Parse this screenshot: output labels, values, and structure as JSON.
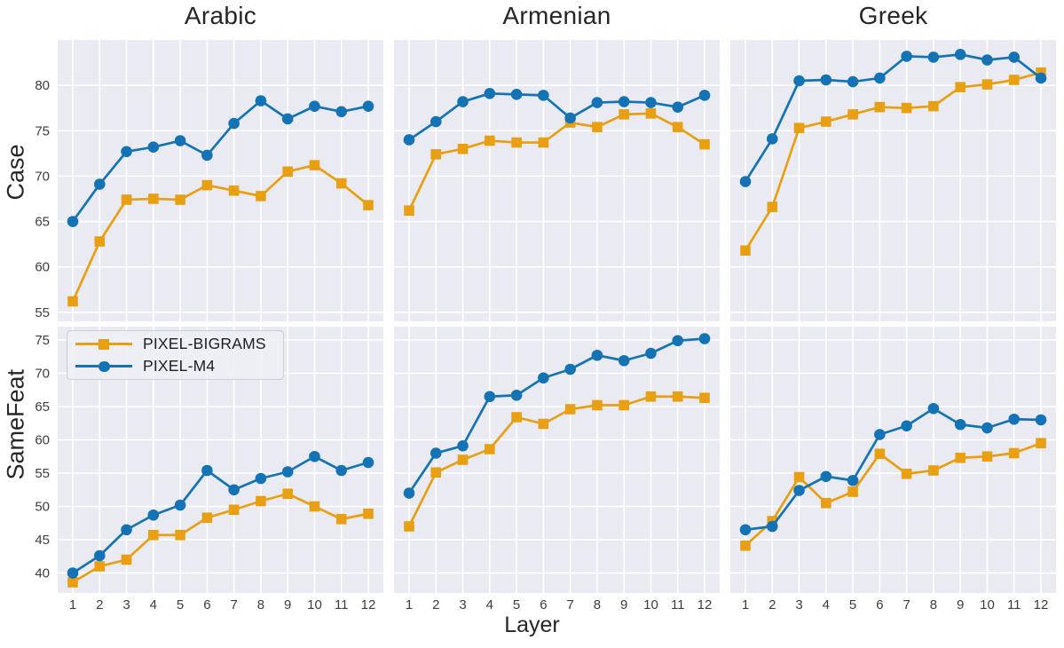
{
  "figure": {
    "col_titles": [
      "Arabic",
      "Armenian",
      "Greek"
    ],
    "row_labels": [
      "Case",
      "SameFeat"
    ],
    "xlabel": "Layer",
    "legend": [
      {
        "label": "PIXEL-BIGRAMS",
        "color": "#E8A012",
        "marker": "square"
      },
      {
        "label": "PIXEL-M4",
        "color": "#1473B4",
        "marker": "circle"
      }
    ],
    "colors": {
      "panel_background": "#EAEAF2",
      "gridline": "#FFFFFF",
      "tick_text": "#3d3d3d",
      "title_text": "#262626"
    }
  },
  "chart_data": [
    {
      "type": "line",
      "row": "Case",
      "col": "Arabic",
      "grid": true,
      "x": [
        1,
        2,
        3,
        4,
        5,
        6,
        7,
        8,
        9,
        10,
        11,
        12
      ],
      "ylim": [
        54,
        85
      ],
      "yticks": [
        55,
        60,
        65,
        70,
        75,
        80
      ],
      "series": [
        {
          "name": "PIXEL-BIGRAMS",
          "values": [
            56.2,
            62.8,
            67.4,
            67.5,
            67.4,
            69.0,
            68.4,
            67.8,
            70.5,
            71.2,
            69.2,
            66.8
          ]
        },
        {
          "name": "PIXEL-M4",
          "values": [
            65.0,
            69.1,
            72.7,
            73.2,
            73.9,
            72.3,
            75.8,
            78.3,
            76.3,
            77.7,
            77.1,
            77.7
          ]
        }
      ]
    },
    {
      "type": "line",
      "row": "Case",
      "col": "Armenian",
      "grid": true,
      "x": [
        1,
        2,
        3,
        4,
        5,
        6,
        7,
        8,
        9,
        10,
        11,
        12
      ],
      "ylim": [
        54,
        85
      ],
      "yticks": [
        55,
        60,
        65,
        70,
        75,
        80
      ],
      "series": [
        {
          "name": "PIXEL-BIGRAMS",
          "values": [
            66.2,
            72.4,
            73.0,
            73.9,
            73.7,
            73.7,
            75.9,
            75.4,
            76.8,
            76.9,
            75.4,
            73.5
          ]
        },
        {
          "name": "PIXEL-M4",
          "values": [
            74.0,
            76.0,
            78.2,
            79.1,
            79.0,
            78.9,
            76.4,
            78.1,
            78.2,
            78.1,
            77.6,
            78.9
          ]
        }
      ]
    },
    {
      "type": "line",
      "row": "Case",
      "col": "Greek",
      "grid": true,
      "x": [
        1,
        2,
        3,
        4,
        5,
        6,
        7,
        8,
        9,
        10,
        11,
        12
      ],
      "ylim": [
        54,
        85
      ],
      "yticks": [
        55,
        60,
        65,
        70,
        75,
        80
      ],
      "series": [
        {
          "name": "PIXEL-BIGRAMS",
          "values": [
            61.8,
            66.6,
            75.3,
            76.0,
            76.8,
            77.6,
            77.5,
            77.7,
            79.8,
            80.1,
            80.6,
            81.4
          ]
        },
        {
          "name": "PIXEL-M4",
          "values": [
            69.4,
            74.1,
            80.5,
            80.6,
            80.4,
            80.8,
            83.2,
            83.1,
            83.4,
            82.8,
            83.1,
            80.8
          ]
        }
      ]
    },
    {
      "type": "line",
      "row": "SameFeat",
      "col": "Arabic",
      "grid": true,
      "x": [
        1,
        2,
        3,
        4,
        5,
        6,
        7,
        8,
        9,
        10,
        11,
        12
      ],
      "ylim": [
        37,
        77
      ],
      "yticks": [
        40,
        45,
        50,
        55,
        60,
        65,
        70,
        75
      ],
      "series": [
        {
          "name": "PIXEL-BIGRAMS",
          "values": [
            38.6,
            41.0,
            42.0,
            45.7,
            45.7,
            48.3,
            49.5,
            50.8,
            51.9,
            50.0,
            48.1,
            48.9
          ]
        },
        {
          "name": "PIXEL-M4",
          "values": [
            40.0,
            42.6,
            46.5,
            48.7,
            50.2,
            55.4,
            52.5,
            54.2,
            55.2,
            57.5,
            55.4,
            56.6
          ]
        }
      ]
    },
    {
      "type": "line",
      "row": "SameFeat",
      "col": "Armenian",
      "grid": true,
      "x": [
        1,
        2,
        3,
        4,
        5,
        6,
        7,
        8,
        9,
        10,
        11,
        12
      ],
      "ylim": [
        37,
        77
      ],
      "yticks": [
        40,
        45,
        50,
        55,
        60,
        65,
        70,
        75
      ],
      "series": [
        {
          "name": "PIXEL-BIGRAMS",
          "values": [
            47.0,
            55.1,
            57.0,
            58.6,
            63.4,
            62.4,
            64.6,
            65.2,
            65.2,
            66.5,
            66.5,
            66.3
          ]
        },
        {
          "name": "PIXEL-M4",
          "values": [
            52.0,
            58.0,
            59.1,
            66.5,
            66.7,
            69.3,
            70.6,
            72.7,
            71.9,
            73.0,
            74.9,
            75.2
          ]
        }
      ]
    },
    {
      "type": "line",
      "row": "SameFeat",
      "col": "Greek",
      "grid": true,
      "x": [
        1,
        2,
        3,
        4,
        5,
        6,
        7,
        8,
        9,
        10,
        11,
        12
      ],
      "ylim": [
        37,
        77
      ],
      "yticks": [
        40,
        45,
        50,
        55,
        60,
        65,
        70,
        75
      ],
      "series": [
        {
          "name": "PIXEL-BIGRAMS",
          "values": [
            44.1,
            47.8,
            54.4,
            50.5,
            52.2,
            57.9,
            54.9,
            55.4,
            57.3,
            57.5,
            58.0,
            59.5
          ]
        },
        {
          "name": "PIXEL-M4",
          "values": [
            46.5,
            47.0,
            52.4,
            54.5,
            53.9,
            60.8,
            62.1,
            64.7,
            62.3,
            61.8,
            63.1,
            63.0
          ]
        }
      ]
    }
  ]
}
